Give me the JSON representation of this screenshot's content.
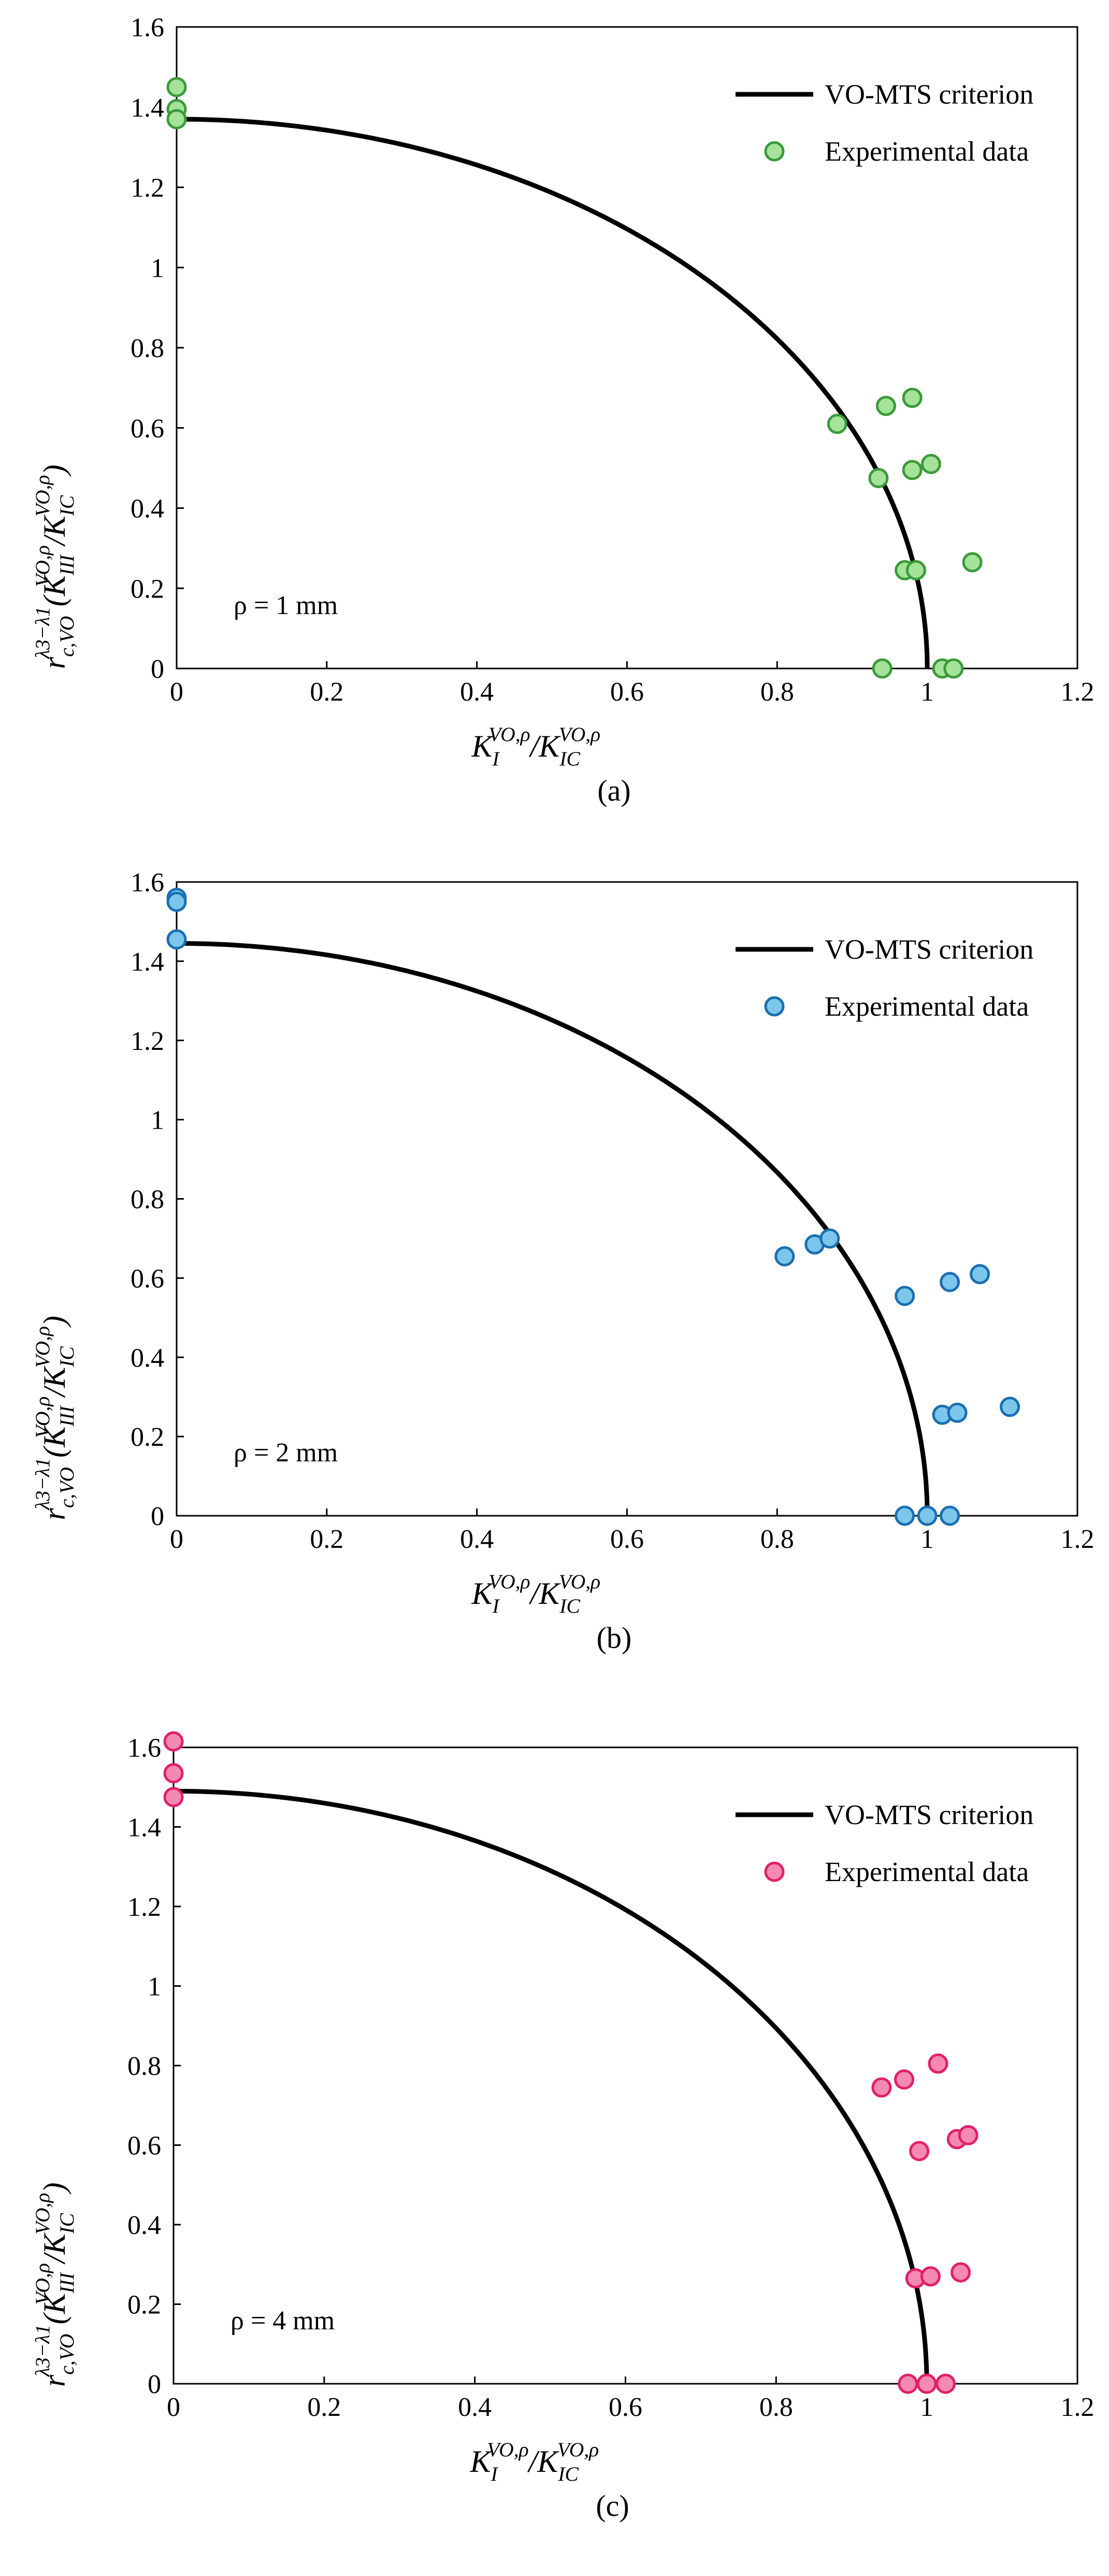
{
  "chart_data": [
    {
      "type": "scatter",
      "panel_label": "(a)",
      "rho_label": "ρ = 1 mm",
      "xlabel": "K_I^{VO,ρ}/K_IC^{VO,ρ}",
      "ylabel": "r_{c,VO}^{λ3−λ1}(K_III^{VO,ρ}/K_IC^{VO,ρ})",
      "xlim": [
        0,
        1.2
      ],
      "ylim": [
        0,
        1.6
      ],
      "xticks": [
        0,
        0.2,
        0.4,
        0.6,
        0.8,
        1,
        1.2
      ],
      "yticks": [
        0,
        0.2,
        0.4,
        0.6,
        0.8,
        1,
        1.2,
        1.4,
        1.6
      ],
      "xtick_labels": [
        "0",
        "0.2",
        "0.4",
        "0.6",
        "0.8",
        "1",
        "1.2"
      ],
      "ytick_labels": [
        "0",
        "0.2",
        "0.4",
        "0.6",
        "0.8",
        "1",
        "1.2",
        "1.4",
        "1.6"
      ],
      "legend": {
        "position": "top-right",
        "line_label": "VO-MTS criterion",
        "marker_label": "Experimental data"
      },
      "series": [
        {
          "name": "VO-MTS criterion",
          "kind": "line",
          "color": "#000000",
          "y0": 1.37
        },
        {
          "name": "Experimental data",
          "kind": "scatter",
          "color": "#a6e39a",
          "edge": "#3a9a3a",
          "x": [
            0,
            0,
            0,
            0.88,
            0.945,
            0.98,
            0.935,
            0.98,
            1.005,
            0.97,
            0.985,
            1.06,
            0.94,
            1.02,
            1.035
          ],
          "y": [
            1.45,
            1.395,
            1.37,
            0.61,
            0.655,
            0.675,
            0.475,
            0.495,
            0.51,
            0.245,
            0.245,
            0.265,
            0,
            0,
            0
          ]
        }
      ]
    },
    {
      "type": "scatter",
      "panel_label": "(b)",
      "rho_label": "ρ = 2 mm",
      "xlabel": "K_I^{VO,ρ}/K_IC^{VO,ρ}",
      "ylabel": "r_{c,VO}^{λ3−λ1}(K_III^{VO,ρ}/K_IC^{VO,ρ})",
      "xlim": [
        0,
        1.2
      ],
      "ylim": [
        0,
        1.6
      ],
      "xticks": [
        0,
        0.2,
        0.4,
        0.6,
        0.8,
        1,
        1.2
      ],
      "yticks": [
        0,
        0.2,
        0.4,
        0.6,
        0.8,
        1,
        1.2,
        1.4,
        1.6
      ],
      "xtick_labels": [
        "0",
        "0.2",
        "0.4",
        "0.6",
        "0.8",
        "1",
        "1.2"
      ],
      "ytick_labels": [
        "0",
        "0.2",
        "0.4",
        "0.6",
        "0.8",
        "1",
        "1.2",
        "1.4",
        "1.6"
      ],
      "legend": {
        "position": "top-right",
        "line_label": "VO-MTS criterion",
        "marker_label": "Experimental data"
      },
      "series": [
        {
          "name": "VO-MTS criterion",
          "kind": "line",
          "color": "#000000",
          "y0": 1.445
        },
        {
          "name": "Experimental data",
          "kind": "scatter",
          "color": "#7cc6ec",
          "edge": "#1a6fb0",
          "x": [
            0,
            0,
            0,
            0.81,
            0.85,
            0.87,
            0.97,
            1.03,
            1.07,
            1.02,
            1.04,
            1.11,
            0.97,
            1.0,
            1.03
          ],
          "y": [
            1.56,
            1.55,
            1.455,
            0.655,
            0.685,
            0.7,
            0.555,
            0.59,
            0.61,
            0.255,
            0.26,
            0.275,
            0,
            0,
            0
          ]
        }
      ]
    },
    {
      "type": "scatter",
      "panel_label": "(c)",
      "rho_label": "ρ = 4 mm",
      "xlabel": "K_I^{VO,ρ}/K_IC^{VO,ρ}",
      "ylabel": "r_{c,VO}^{λ3−λ1}(K_III^{VO,ρ}/K_IC^{VO,ρ})",
      "xlim": [
        0,
        1.2
      ],
      "ylim": [
        0,
        1.6
      ],
      "xticks": [
        0,
        0.2,
        0.4,
        0.6,
        0.8,
        1,
        1.2
      ],
      "yticks": [
        0,
        0.2,
        0.4,
        0.6,
        0.8,
        1,
        1.2,
        1.4,
        1.6
      ],
      "xtick_labels": [
        "0",
        "0.2",
        "0.4",
        "0.6",
        "0.8",
        "1",
        "1.2"
      ],
      "ytick_labels": [
        "0",
        "0.2",
        "0.4",
        "0.6",
        "0.8",
        "1",
        "1.2",
        "1.4",
        "1.6"
      ],
      "legend": {
        "position": "top-right",
        "line_label": "VO-MTS criterion",
        "marker_label": "Experimental data"
      },
      "series": [
        {
          "name": "VO-MTS criterion",
          "kind": "line",
          "color": "#000000",
          "y0": 1.49
        },
        {
          "name": "Experimental data",
          "kind": "scatter",
          "color": "#f48ab2",
          "edge": "#e0206a",
          "x": [
            0,
            0,
            0,
            0.94,
            0.97,
            1.015,
            0.99,
            1.04,
            1.055,
            0.985,
            1.005,
            1.045,
            0.975,
            1.0,
            1.025
          ],
          "y": [
            1.615,
            1.535,
            1.475,
            0.745,
            0.765,
            0.805,
            0.585,
            0.615,
            0.625,
            0.265,
            0.27,
            0.28,
            0,
            0,
            0
          ]
        }
      ]
    }
  ]
}
